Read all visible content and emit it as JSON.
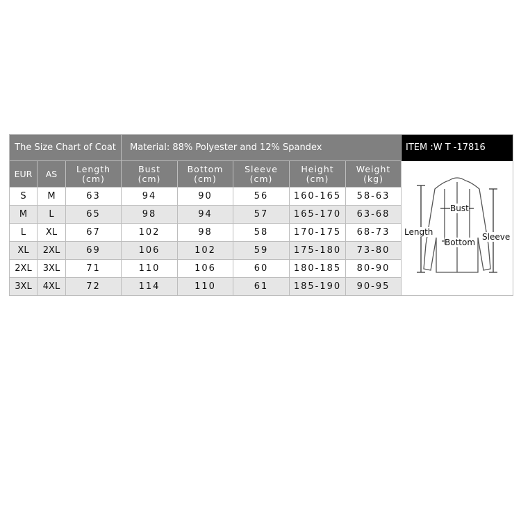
{
  "title": "The Size Chart of Coat",
  "material": "Material:  88% Polyester and 12% Spandex",
  "item": "ITEM :W T -17816",
  "columns": [
    [
      "EUR",
      ""
    ],
    [
      "AS",
      ""
    ],
    [
      "Length",
      "(cm)"
    ],
    [
      "Bust",
      "(cm)"
    ],
    [
      "Bottom",
      "(cm)"
    ],
    [
      "Sleeve",
      "(cm)"
    ],
    [
      "Height",
      "(cm)"
    ],
    [
      "Weight",
      "(kg)"
    ]
  ],
  "rows": [
    [
      "S",
      "M",
      "63",
      "94",
      "90",
      "56",
      "160-165",
      "58-63"
    ],
    [
      "M",
      "L",
      "65",
      "98",
      "94",
      "57",
      "165-170",
      "63-68"
    ],
    [
      "L",
      "XL",
      "67",
      "102",
      "98",
      "58",
      "170-175",
      "68-73"
    ],
    [
      "XL",
      "2XL",
      "69",
      "106",
      "102",
      "59",
      "175-180",
      "73-80"
    ],
    [
      "2XL",
      "3XL",
      "71",
      "110",
      "106",
      "60",
      "180-185",
      "80-90"
    ],
    [
      "3XL",
      "4XL",
      "72",
      "114",
      "110",
      "61",
      "185-190",
      "90-95"
    ]
  ],
  "diagram": {
    "length": "Length",
    "bust": "Bust",
    "bottom": "Bottom",
    "sleeve": "Sleeve"
  },
  "colors": {
    "header": "#808080",
    "item_bg": "#000000",
    "alt_row": "#e6e6e6"
  }
}
